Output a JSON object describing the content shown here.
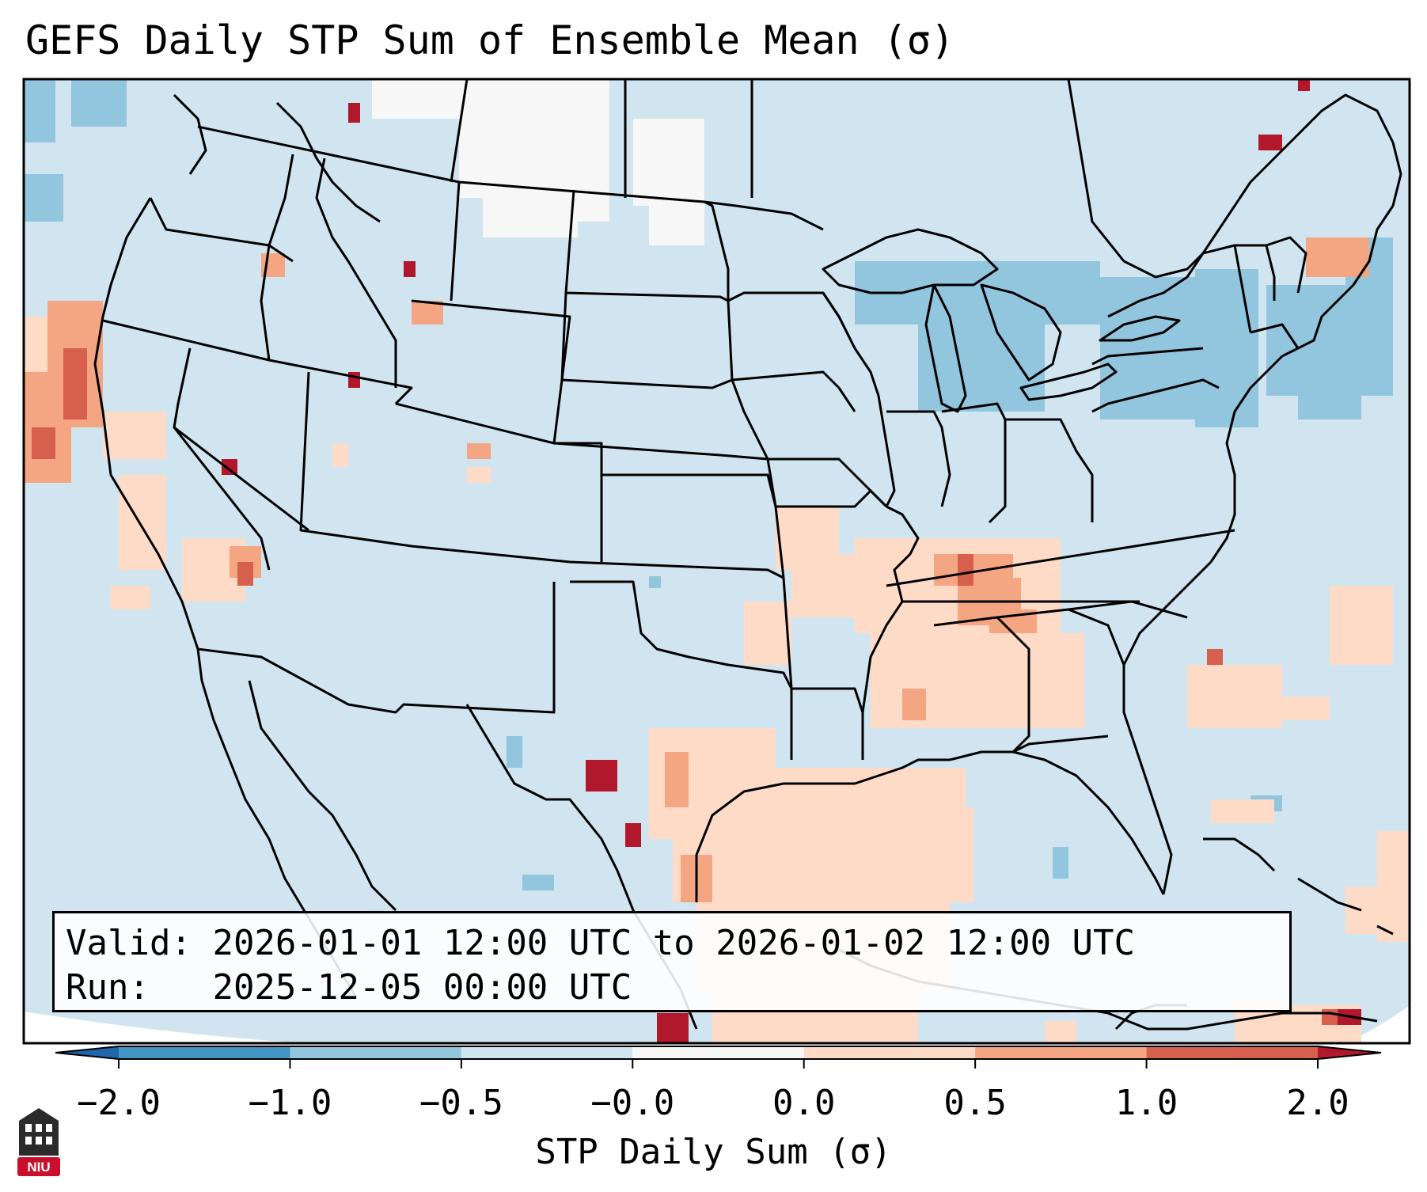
{
  "title": "GEFS Daily STP Sum of Ensemble Mean (σ)",
  "info": {
    "valid_label": "Valid:",
    "valid_value": "2026-01-01 12:00 UTC to 2026-01-02 12:00 UTC",
    "run_label": "Run:",
    "run_value": "2025-12-05 00:00 UTC"
  },
  "colorbar": {
    "label": "STP Daily Sum (σ)",
    "ticks": [
      "−2.0",
      "−1.0",
      "−0.5",
      "−0.0",
      "0.0",
      "0.5",
      "1.0",
      "2.0"
    ],
    "colors": {
      "under": "#2166ac",
      "neg_strong": "#4393c3",
      "neg_mid": "#92c5de",
      "neg_weak": "#d1e5f0",
      "neutral": "#f7f7f7",
      "pos_weak": "#fddbc7",
      "pos_mid": "#f4a582",
      "pos_strong": "#d6604d",
      "over": "#b2182b"
    }
  },
  "map": {
    "region": "Contiguous United States",
    "land_base_color": "#d1e5f0",
    "outline_color": "#000000"
  },
  "logo": {
    "text": "NIU",
    "color": "#c8102e"
  }
}
